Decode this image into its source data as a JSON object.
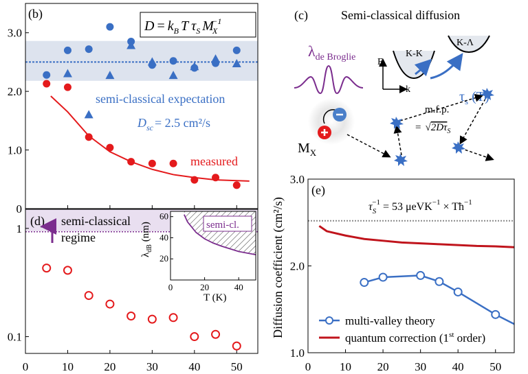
{
  "panel_b": {
    "label": "(b)",
    "formula": {
      "lhs": "D",
      "eq": "=",
      "kB": "k",
      "kB_sub": "B",
      "T": "T",
      "tau": "τ",
      "tau_sub": "S",
      "M": "M",
      "M_sub": "X",
      "M_sup": "−1"
    },
    "annotation_expectation": "semi-classical expectation",
    "annotation_dsc_symbol": "D",
    "annotation_dsc_sub": "sc",
    "annotation_dsc_value": "= 2.5 cm²/s",
    "annotation_measured": "measured",
    "colors": {
      "blue": "#3a6fc4",
      "red": "#e41a1c",
      "band": "#dde3ee"
    }
  },
  "panel_c": {
    "label": "(c)",
    "title": "Semi-classical diffusion",
    "lambda_symbol": "λ",
    "lambda_sub": "de Broglie",
    "label_E": "E",
    "label_k": "k",
    "label_KK": "K-K",
    "label_KL": "K-Λ",
    "tau_label": "τ",
    "tau_sub": "s",
    "tau_arg": " (T)",
    "mfp": "m.f.p.",
    "mfp_eq": "=",
    "mfp_sqrt": "2Dτ",
    "mfp_sqrt_sub": "S",
    "Mx": "M",
    "Mx_sub": "X",
    "colors": {
      "purple": "#7b2d8e",
      "blue": "#3a6fc4",
      "red": "#e41a1c"
    }
  },
  "panel_d": {
    "label": "(d)",
    "annotation_line1": "semi-classical",
    "annotation_line2": "regime",
    "inset": {
      "ylabel": "λdB (nm)",
      "xlabel": "T (K)",
      "tag": "semi-cl."
    }
  },
  "panel_e": {
    "label": "(e)",
    "ylabel": "Diffusion coefficient (cm²/s)",
    "formula": "= 53 μeVK",
    "formula_tail": "× Tħ",
    "legend_theory": "multi-valley theory",
    "legend_correction_pre": "quantum correction (1",
    "legend_correction_sup": "st",
    "legend_correction_post": " order)"
  },
  "chart_data": [
    {
      "id": "panel-b",
      "type": "scatter",
      "xlim": [
        0,
        55
      ],
      "ylim": [
        0,
        3.5
      ],
      "x_ticks": [
        0,
        10,
        20,
        30,
        40,
        50
      ],
      "y_ticks": [
        "0",
        "1.0",
        "2.0",
        "3.0"
      ],
      "band": [
        2.18,
        2.86
      ],
      "reference_line": 2.5,
      "series": [
        {
          "marker": "circle",
          "color": "#3a6fc4",
          "x": [
            5,
            10,
            15,
            20,
            25,
            30,
            35,
            40,
            45,
            50
          ],
          "y": [
            2.28,
            2.7,
            2.72,
            3.1,
            2.85,
            2.45,
            2.52,
            2.4,
            2.48,
            2.7
          ]
        },
        {
          "marker": "triangle",
          "color": "#3a6fc4",
          "x": [
            10,
            15,
            20,
            25,
            30,
            35,
            40,
            45,
            50
          ],
          "y": [
            2.3,
            1.6,
            2.27,
            2.78,
            2.5,
            2.27,
            2.42,
            2.55,
            2.47
          ]
        },
        {
          "name": "measured",
          "marker": "circle",
          "color": "#e41a1c",
          "x": [
            5,
            10,
            15,
            20,
            25,
            30,
            35,
            40,
            45,
            50
          ],
          "y": [
            2.13,
            2.07,
            1.22,
            1.04,
            0.8,
            0.77,
            0.77,
            0.49,
            0.53,
            0.4
          ]
        }
      ],
      "fit": {
        "color": "#e41a1c",
        "x": [
          6,
          10,
          15,
          20,
          25,
          30,
          35,
          40,
          45,
          53
        ],
        "y": [
          1.92,
          1.65,
          1.24,
          0.97,
          0.8,
          0.67,
          0.58,
          0.53,
          0.49,
          0.47
        ]
      }
    },
    {
      "id": "panel-d",
      "type": "scatter",
      "xlim": [
        0,
        55
      ],
      "ylim": [
        0.07,
        1.5
      ],
      "y_scale": "log",
      "x_ticks": [
        "0",
        "10",
        "20",
        "30",
        "40",
        "50"
      ],
      "y_ticks": [
        "0.1",
        "1"
      ],
      "series": [
        {
          "marker": "open-circle",
          "color": "#e41a1c",
          "x": [
            5,
            10,
            15,
            20,
            25,
            30,
            35,
            40,
            45,
            50
          ],
          "y": [
            0.43,
            0.41,
            0.24,
            0.2,
            0.155,
            0.145,
            0.15,
            0.1,
            0.105,
            0.082
          ]
        }
      ],
      "threshold": 0.93
    },
    {
      "id": "panel-d-inset",
      "type": "line",
      "xlim": [
        0,
        50
      ],
      "ylim": [
        0,
        65
      ],
      "x_ticks": [
        "0",
        "20",
        "40"
      ],
      "y_ticks": [
        "20",
        "40",
        "60"
      ],
      "series": [
        {
          "color": "#7b2d8e",
          "x": [
            8,
            10,
            15,
            20,
            25,
            30,
            40,
            50
          ],
          "y": [
            62,
            55,
            45,
            39,
            35,
            32,
            27,
            24
          ]
        }
      ]
    },
    {
      "id": "panel-e",
      "type": "line",
      "xlim": [
        0,
        55
      ],
      "ylim": [
        1.0,
        3.0
      ],
      "x_ticks": [
        "0",
        "10",
        "20",
        "30",
        "40",
        "50"
      ],
      "y_ticks": [
        "1.0",
        "2.0",
        "3.0"
      ],
      "reference_line": 2.52,
      "series": [
        {
          "name": "multi-valley theory",
          "marker": "open-circle",
          "color": "#3a6fc4",
          "x": [
            15,
            20,
            30,
            35,
            40,
            50
          ],
          "y": [
            1.81,
            1.87,
            1.89,
            1.82,
            1.7,
            1.44
          ],
          "extend_to": [
            55,
            1.33
          ]
        },
        {
          "name": "quantum correction (1st order)",
          "color": "#c0141c",
          "x": [
            3,
            5,
            10,
            15,
            20,
            25,
            30,
            35,
            40,
            45,
            50,
            55
          ],
          "y": [
            2.46,
            2.4,
            2.35,
            2.31,
            2.29,
            2.27,
            2.26,
            2.25,
            2.24,
            2.23,
            2.225,
            2.215
          ]
        }
      ]
    }
  ]
}
